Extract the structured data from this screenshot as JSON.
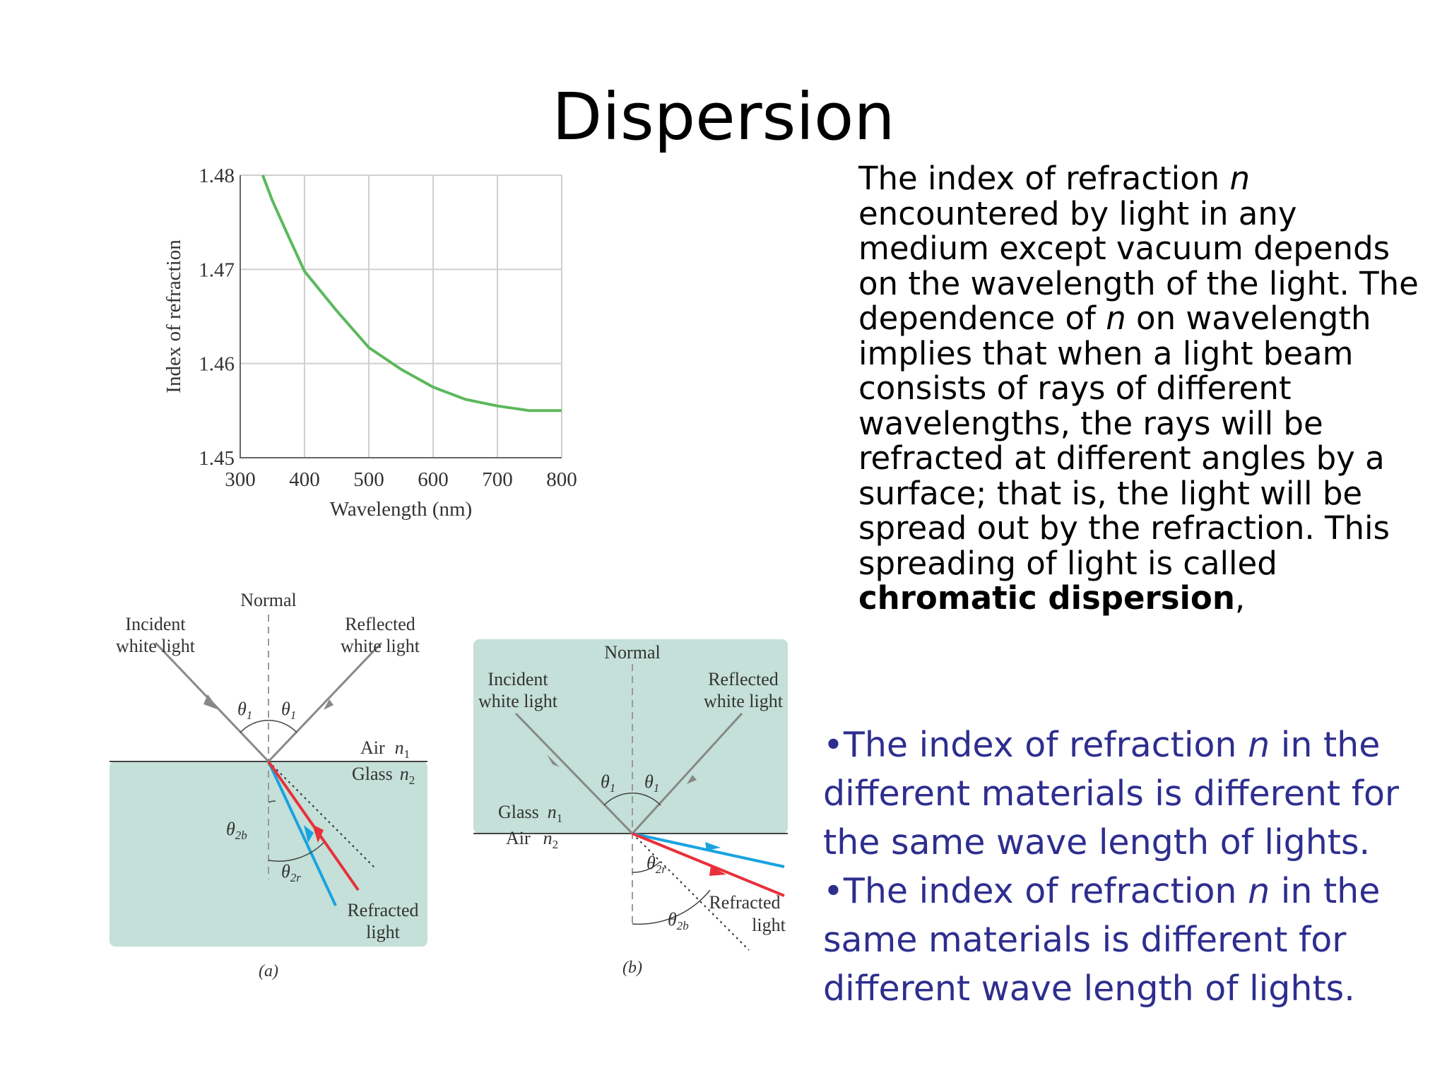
{
  "slide": {
    "title": "Dispersion"
  },
  "chart_data": {
    "type": "line",
    "title": "",
    "xlabel": "Wavelength (nm)",
    "ylabel": "Index of refraction",
    "xlim": [
      300,
      800
    ],
    "ylim": [
      1.45,
      1.48
    ],
    "x_ticks": [
      "300",
      "400",
      "500",
      "600",
      "700",
      "800"
    ],
    "y_ticks": [
      "1.45",
      "1.46",
      "1.47",
      "1.48"
    ],
    "grid": true,
    "series": [
      {
        "color": "#5cb85c",
        "x": [
          335,
          350,
          375,
          400,
          450,
          500,
          550,
          600,
          650,
          700,
          750,
          800
        ],
        "y": [
          1.48,
          1.4773,
          1.4735,
          1.4698,
          1.4656,
          1.4617,
          1.4594,
          1.4575,
          1.4562,
          1.4555,
          1.455,
          1.455
        ]
      }
    ]
  },
  "figure_a": {
    "normal": "Normal",
    "incident_line1": "Incident",
    "incident_line2": "white light",
    "reflected_line1": "Reflected",
    "reflected_line2": "white light",
    "theta1_left": "θ",
    "theta1_right": "θ",
    "sub1": "1",
    "air": "Air",
    "n1": "n",
    "glass": "Glass",
    "n2": "n",
    "sub2": "2",
    "theta2b": "θ",
    "sub2b": "2b",
    "theta2r": "θ",
    "sub2r": "2r",
    "refracted_line1": "Refracted",
    "refracted_line2": "light",
    "caption": "(a)"
  },
  "figure_b": {
    "normal": "Normal",
    "incident_line1": "Incident",
    "incident_line2": "white light",
    "reflected_line1": "Reflected",
    "reflected_line2": "white light",
    "theta1_left": "θ",
    "theta1_right": "θ",
    "sub1": "1",
    "glass": "Glass",
    "n1": "n",
    "air": "Air",
    "n2": "n",
    "sub2": "2",
    "theta2r": "θ",
    "sub2r": "2r",
    "theta2b": "θ",
    "sub2b": "2b",
    "refracted_line1": "Refracted",
    "refracted_line2": "light",
    "caption": "(b)"
  },
  "paragraph": {
    "part1": "The index of refraction ",
    "n_italic": "n",
    "part2": " encountered by light in any medium except vacuum depends on the wavelength of the light. The dependence of ",
    "n_italic2": "n",
    "part3": " on wavelength implies that when a light beam consists of rays of different wavelengths, the rays will be refracted at different angles by a surface; that is, the light will be spread out by the refraction. This spreading of light is called ",
    "bold_term": "chromatic dispersion",
    "part4": ","
  },
  "bullets": [
    {
      "pre": "•The index of refraction ",
      "n": "n",
      "post": " in the different materials is different for the same wave length of lights."
    },
    {
      "pre": "•The index of refraction ",
      "n": "n",
      "post": " in the same materials is different for different wave length of lights."
    }
  ],
  "colors": {
    "glass_fill": "#c4e0d8",
    "incident_ray": "#888888",
    "red_ray": "#e8303a",
    "blue_ray": "#1aa3e0",
    "bullet_text": "#2e2e8f"
  }
}
